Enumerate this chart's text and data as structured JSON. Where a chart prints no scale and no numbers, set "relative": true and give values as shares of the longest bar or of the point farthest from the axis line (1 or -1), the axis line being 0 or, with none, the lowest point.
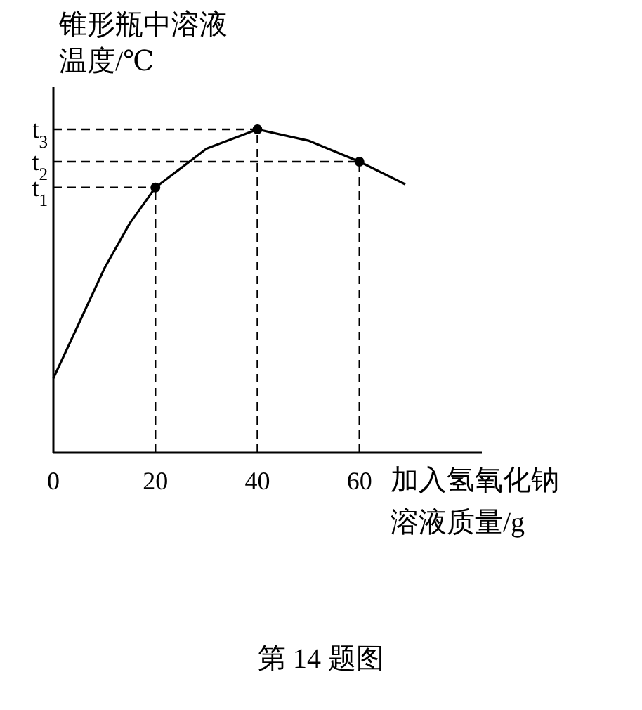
{
  "chart_data": {
    "type": "line",
    "relative": true,
    "xlabel": "加入氢氧化钠溶液质量/g",
    "ylabel": "锥形瓶中溶液温度/℃",
    "xlim": [
      0,
      84
    ],
    "xticks": [
      0,
      20,
      40,
      60
    ],
    "series": [
      {
        "color": "#000000",
        "x": [
          0,
          5,
          10,
          15,
          20,
          30,
          40,
          50,
          60,
          69
        ],
        "values": [
          0.23,
          0.4,
          0.57,
          0.71,
          0.82,
          0.94,
          1,
          0.965,
          0.9,
          0.83
        ]
      },
      {
        "type": "scatter",
        "marker": "circle",
        "color": "#000000",
        "x": [
          20,
          40,
          60
        ],
        "values": [
          0.82,
          1,
          0.9
        ]
      }
    ],
    "ref_lines": [
      {
        "axis": "y",
        "value": 0.82,
        "label": "t$_{1}$",
        "line_style": "dashed"
      },
      {
        "axis": "y",
        "value": 0.9,
        "label": "t$_{2}$",
        "line_style": "dashed"
      },
      {
        "axis": "y",
        "value": 1,
        "label": "t$_{3}$",
        "line_style": "dashed"
      },
      {
        "axis": "x",
        "value": 20,
        "line_style": "dashed"
      },
      {
        "axis": "x",
        "value": 40,
        "line_style": "dashed"
      },
      {
        "axis": "x",
        "value": 60,
        "line_style": "dashed"
      }
    ],
    "line_style": "solid",
    "grid": false,
    "annotations": [
      "第 14 题图"
    ]
  }
}
